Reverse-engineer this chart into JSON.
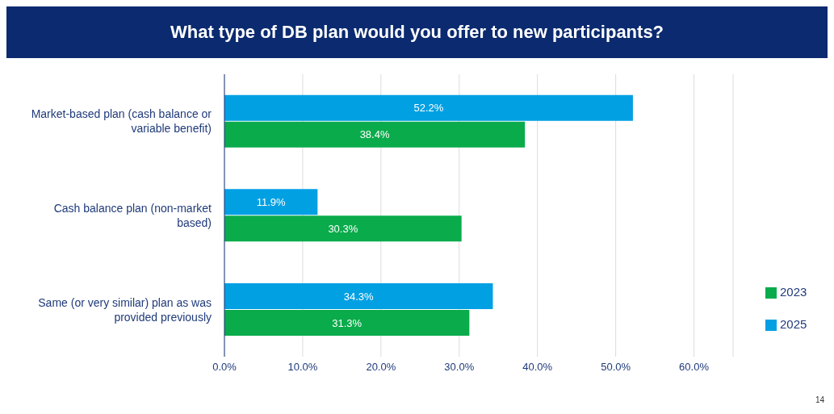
{
  "chart_data": {
    "type": "bar",
    "orientation": "horizontal",
    "title": "What type of DB plan would you offer to new participants?",
    "categories": [
      "Market-based plan (cash balance or variable benefit)",
      "Cash balance plan (non-market based)",
      "Same (or very similar) plan as was provided previously"
    ],
    "series": [
      {
        "name": "2025",
        "color": "#00a0e3",
        "values": [
          52.2,
          11.9,
          34.3
        ],
        "value_labels": [
          "52.2%",
          "11.9%",
          "34.3%"
        ]
      },
      {
        "name": "2023",
        "color": "#0aab4b",
        "values": [
          38.4,
          30.3,
          31.3
        ],
        "value_labels": [
          "38.4%",
          "30.3%",
          "31.3%"
        ]
      }
    ],
    "xlim": [
      0,
      65
    ],
    "xticks": [
      {
        "value": 0,
        "label": "0.0%"
      },
      {
        "value": 10,
        "label": "10.0%"
      },
      {
        "value": 20,
        "label": "20.0%"
      },
      {
        "value": 30,
        "label": "30.0%"
      },
      {
        "value": 40,
        "label": "40.0%"
      },
      {
        "value": 50,
        "label": "50.0%"
      },
      {
        "value": 60,
        "label": "60.0%"
      }
    ],
    "grid": "x",
    "legend": "bottom right",
    "annotations": [
      "14"
    ]
  }
}
